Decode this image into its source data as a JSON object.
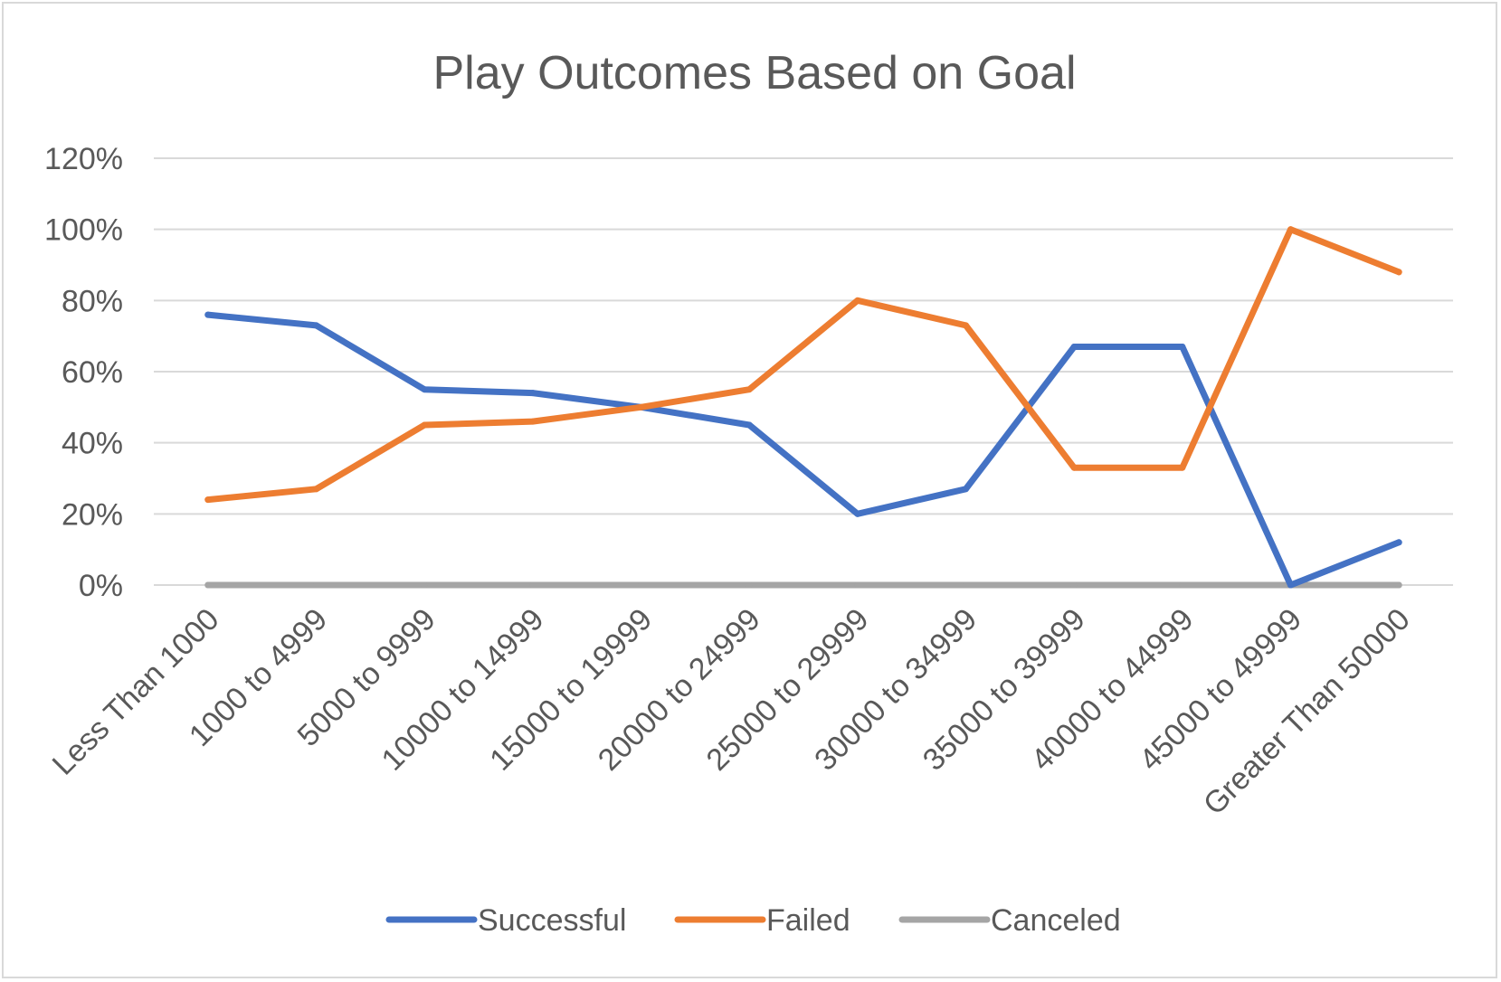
{
  "chart_data": {
    "type": "line",
    "title": "Play Outcomes Based on Goal",
    "xlabel": "",
    "ylabel": "",
    "categories": [
      "Less Than 1000",
      "1000 to 4999",
      "5000 to 9999",
      "10000 to 14999",
      "15000 to 19999",
      "20000 to 24999",
      "25000 to 29999",
      "30000 to 34999",
      "35000 to 39999",
      "40000 to 44999",
      "45000 to 49999",
      "Greater Than 50000"
    ],
    "y_ticks": [
      "0%",
      "20%",
      "40%",
      "60%",
      "80%",
      "100%",
      "120%"
    ],
    "ylim": [
      0,
      1.2
    ],
    "grid": true,
    "legend_position": "bottom",
    "series": [
      {
        "name": "Successful",
        "color": "#4472c4",
        "values": [
          0.76,
          0.73,
          0.55,
          0.54,
          0.5,
          0.45,
          0.2,
          0.27,
          0.67,
          0.67,
          0.0,
          0.12
        ]
      },
      {
        "name": "Failed",
        "color": "#ed7d31",
        "values": [
          0.24,
          0.27,
          0.45,
          0.46,
          0.5,
          0.55,
          0.8,
          0.73,
          0.33,
          0.33,
          1.0,
          0.88
        ]
      },
      {
        "name": "Canceled",
        "color": "#a5a5a5",
        "values": [
          0,
          0,
          0,
          0,
          0,
          0,
          0,
          0,
          0,
          0,
          0,
          0
        ]
      }
    ]
  }
}
